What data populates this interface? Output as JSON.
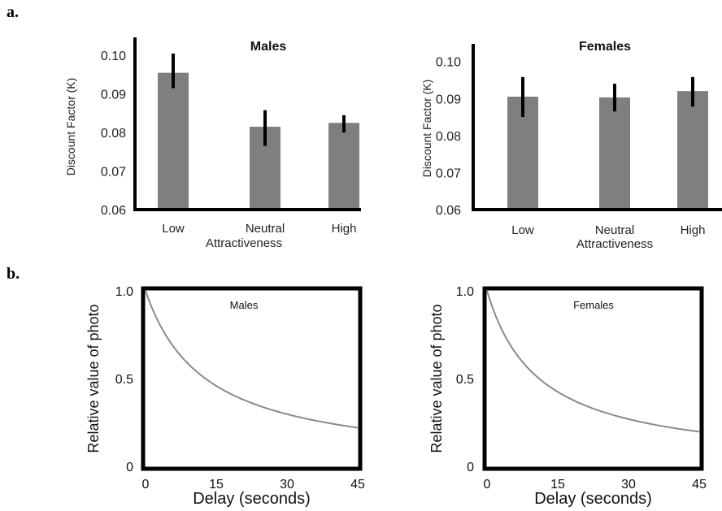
{
  "panel_labels": {
    "a": "a.",
    "b": "b."
  },
  "chart_data": [
    {
      "type": "bar",
      "title": "Males",
      "xlabel": "Attractiveness",
      "ylabel": "Discount Factor (K)",
      "categories": [
        "Low",
        "Neutral",
        "High"
      ],
      "values": [
        0.0955,
        0.0815,
        0.0825
      ],
      "error_low": [
        0.0915,
        0.0765,
        0.08
      ],
      "error_high": [
        0.1005,
        0.0858,
        0.0845
      ],
      "ylim": [
        0.06,
        0.103
      ],
      "yticks": [
        "0.10",
        "0.09",
        "0.08",
        "0.07",
        "0.06"
      ],
      "ytick_values": [
        0.1,
        0.09,
        0.08,
        0.07,
        0.06
      ],
      "bar_color": "#7f7f7f",
      "grid": false
    },
    {
      "type": "bar",
      "title": "Females",
      "xlabel": "Attractiveness",
      "ylabel": "Discount Factor (K)",
      "categories": [
        "Low",
        "Neutral",
        "High"
      ],
      "values": [
        0.0905,
        0.0903,
        0.092
      ],
      "error_low": [
        0.085,
        0.0865,
        0.0878
      ],
      "error_high": [
        0.0958,
        0.094,
        0.0958
      ],
      "ylim": [
        0.06,
        0.103
      ],
      "yticks": [
        "0.10",
        "0.09",
        "0.08",
        "0.07",
        "0.06"
      ],
      "ytick_values": [
        0.1,
        0.09,
        0.08,
        0.07,
        0.06
      ],
      "bar_color": "#7f7f7f",
      "grid": false
    },
    {
      "type": "line",
      "title": "Males",
      "xlabel": "Delay (seconds)",
      "ylabel": "Relative value of photo",
      "xticks": [
        "0",
        "15",
        "30",
        "45"
      ],
      "xtick_values": [
        0,
        15,
        30,
        45
      ],
      "yticks": [
        "1.0",
        "0.5",
        "0"
      ],
      "ytick_values": [
        1.0,
        0.5,
        0
      ],
      "xlim": [
        0,
        45
      ],
      "ylim": [
        0,
        1.0
      ],
      "curve": {
        "form": "hyperbolic",
        "k": 0.0788
      },
      "line_color": "#8a8a8a",
      "grid": false
    },
    {
      "type": "line",
      "title": "Females",
      "xlabel": "Delay (seconds)",
      "ylabel": "Relative value of photo",
      "xticks": [
        "0",
        "15",
        "30",
        "45"
      ],
      "xtick_values": [
        0,
        15,
        30,
        45
      ],
      "yticks": [
        "1.0",
        "0.5",
        "0"
      ],
      "ytick_values": [
        1.0,
        0.5,
        0
      ],
      "xlim": [
        0,
        45
      ],
      "ylim": [
        0,
        1.0
      ],
      "curve": {
        "form": "hyperbolic",
        "k": 0.0905
      },
      "line_color": "#8a8a8a",
      "grid": false
    }
  ]
}
